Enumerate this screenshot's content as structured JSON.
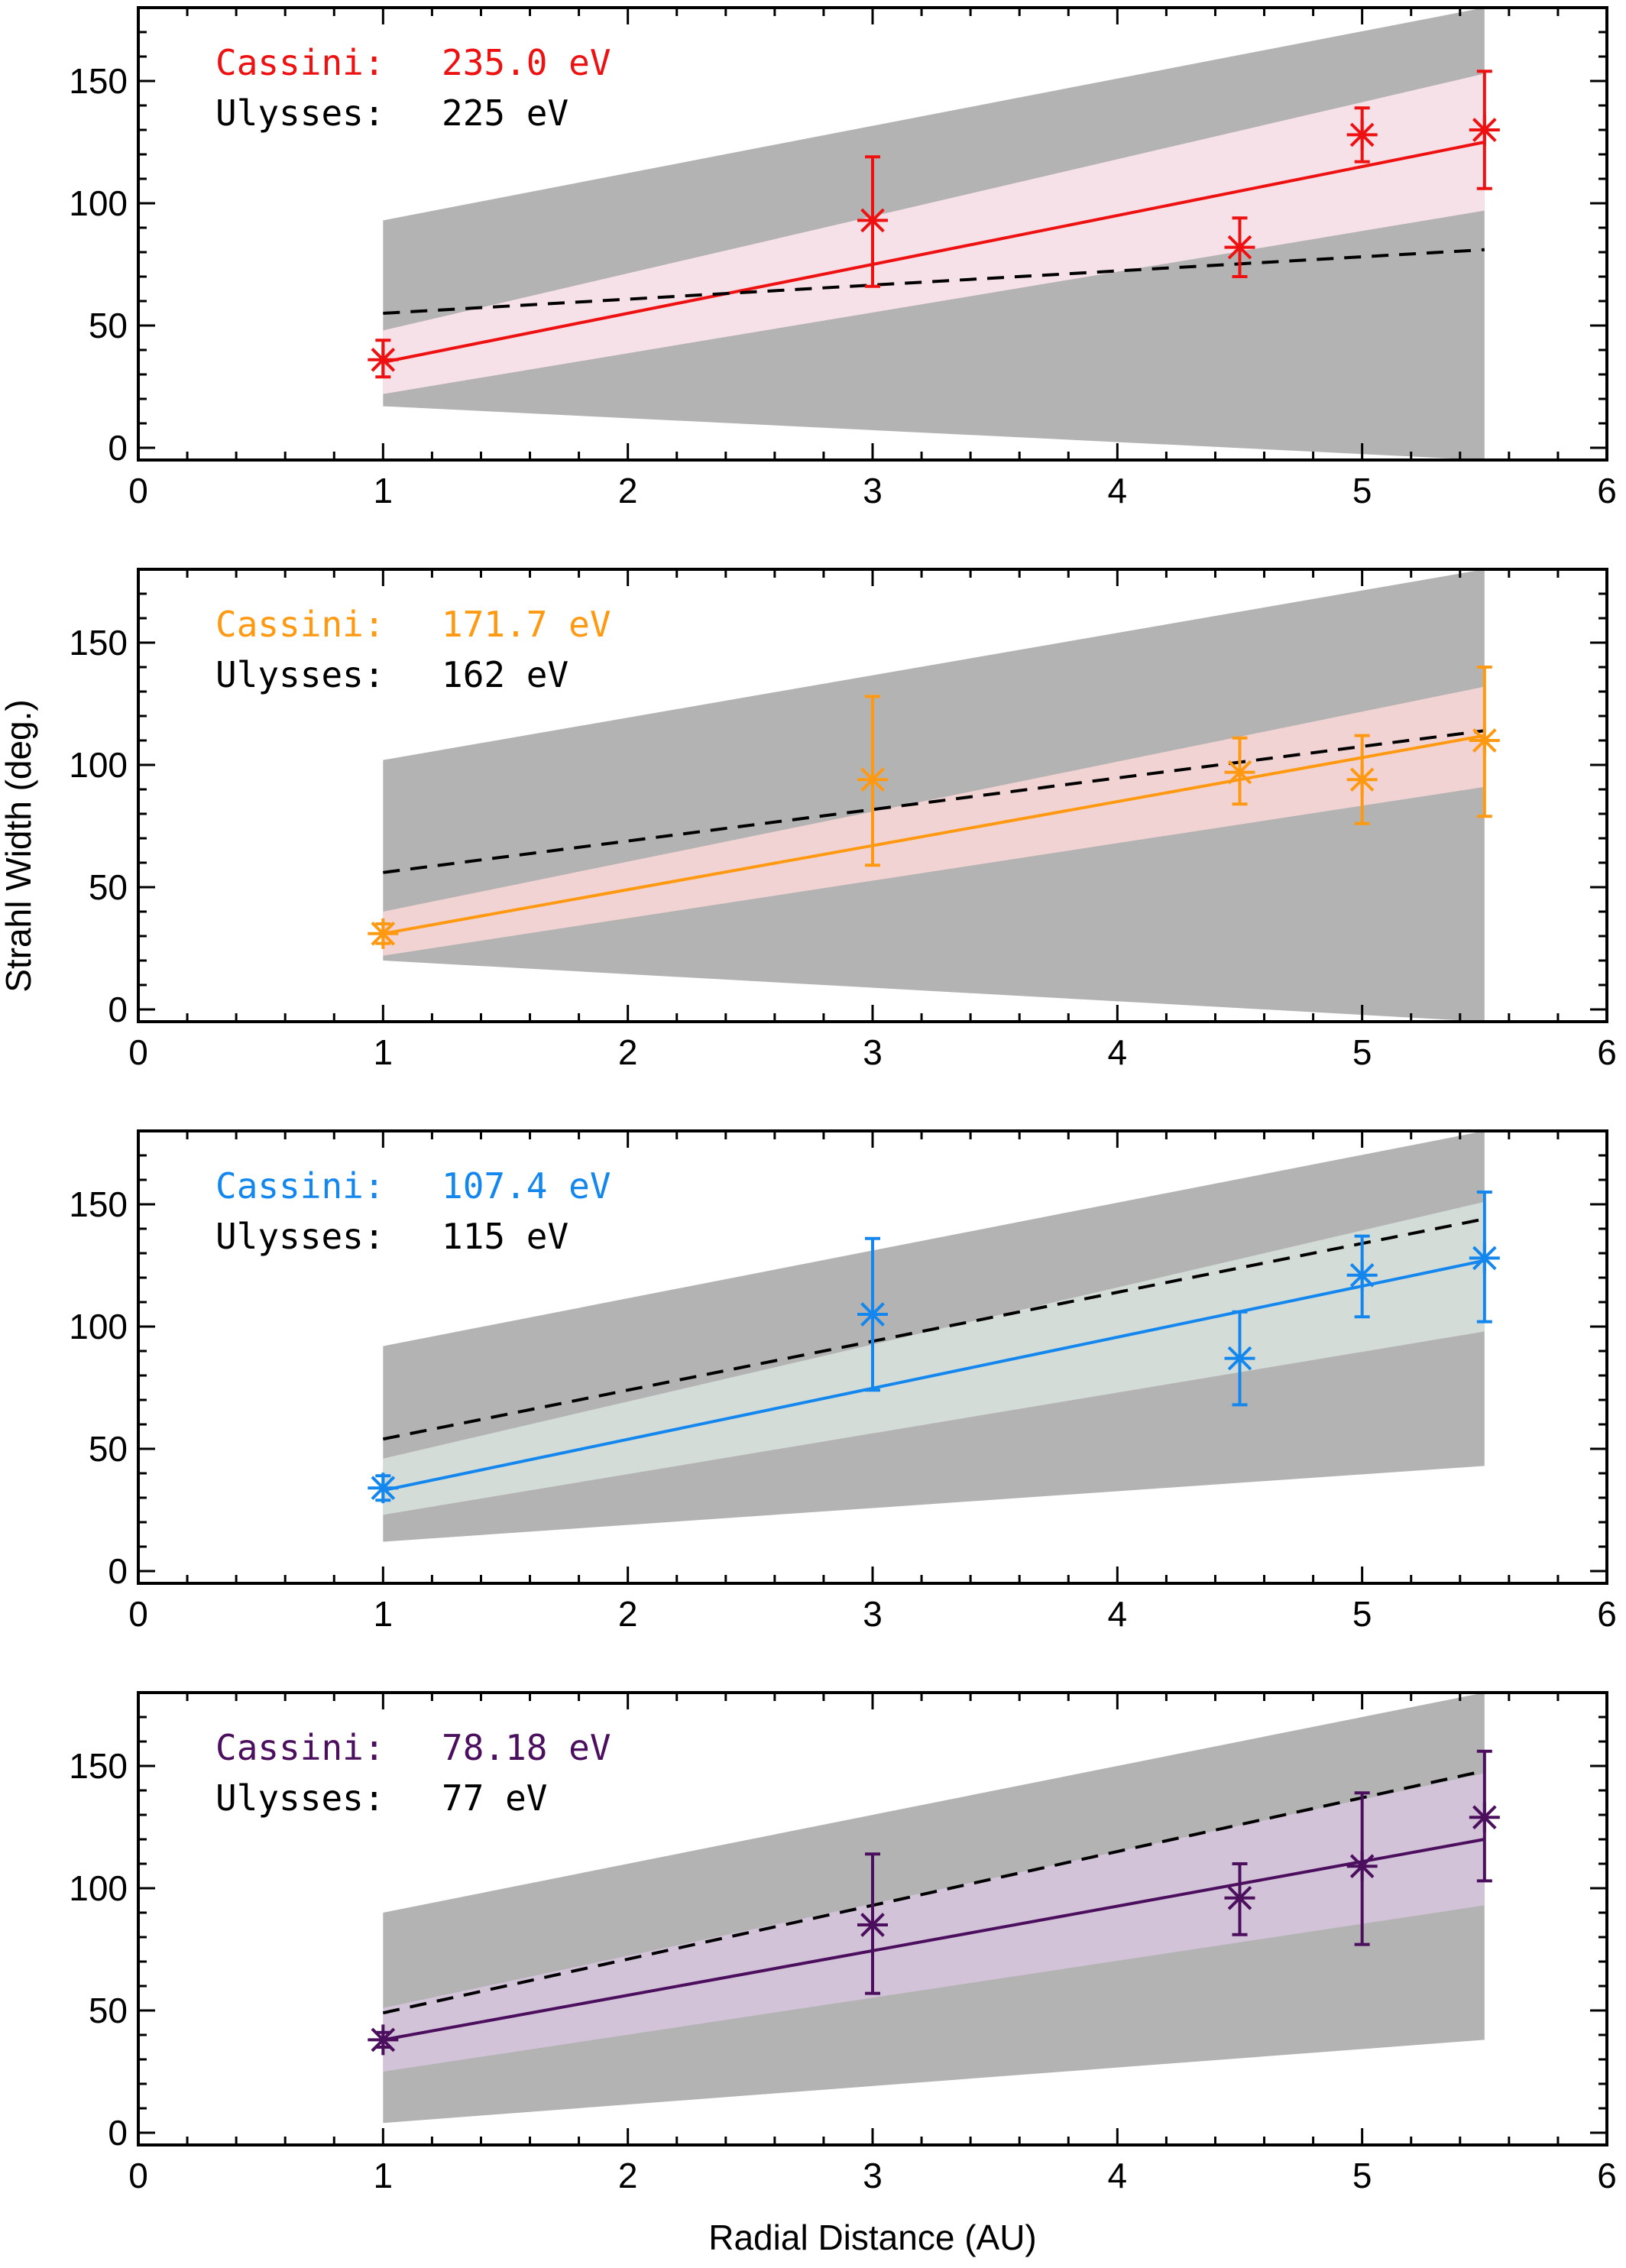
{
  "figure": {
    "ylabel": "Strahl Width (deg.)",
    "xlabel": "Radial Distance (AU)"
  },
  "colors": {
    "band": "#b3b3b3",
    "ulysses_line": "#000000"
  },
  "chart_data": [
    {
      "type": "line",
      "color": "#ee1111",
      "band_color": "#f7e1e8",
      "legend": [
        {
          "label": "Cassini:",
          "value": "235.0 eV",
          "color": "#ee1111"
        },
        {
          "label": "Ulysses:",
          "value": "225 eV",
          "color": "#000000"
        }
      ],
      "xlim": [
        0,
        6
      ],
      "ylim": [
        -5,
        180
      ],
      "xticks": [
        0,
        1,
        2,
        3,
        4,
        5,
        6
      ],
      "yticks": [
        0,
        50,
        100,
        150
      ],
      "x_tick_labels": [
        "0",
        "1",
        "2",
        "3",
        "4",
        "5",
        "6"
      ],
      "y_tick_labels": [
        "0",
        "50",
        "100",
        "150"
      ],
      "points": [
        {
          "x": 1,
          "y": 36,
          "err_low": 29,
          "err_high": 44
        },
        {
          "x": 3,
          "y": 93,
          "err_low": 66,
          "err_high": 119
        },
        {
          "x": 4.5,
          "y": 82,
          "err_low": 70,
          "err_high": 94
        },
        {
          "x": 5,
          "y": 128,
          "err_low": 117,
          "err_high": 139
        },
        {
          "x": 5.5,
          "y": 130,
          "err_low": 106,
          "err_high": 154
        }
      ],
      "fit": {
        "x": [
          1,
          5.5
        ],
        "y": [
          35,
          125
        ]
      },
      "fit_band": {
        "x": [
          1,
          5.5
        ],
        "lower": [
          22,
          97
        ],
        "upper": [
          48,
          153
        ]
      },
      "ulysses": {
        "x": [
          1,
          5.5
        ],
        "y": [
          55,
          81
        ]
      },
      "gray_band": {
        "x": [
          1,
          5.5
        ],
        "lower": [
          17,
          -5
        ],
        "upper": [
          93,
          180
        ]
      }
    },
    {
      "type": "line",
      "color": "#ff9912",
      "band_color": "#f2d3d3",
      "legend": [
        {
          "label": "Cassini:",
          "value": "171.7 eV",
          "color": "#ff9912"
        },
        {
          "label": "Ulysses:",
          "value": "162 eV",
          "color": "#000000"
        }
      ],
      "xlim": [
        0,
        6
      ],
      "ylim": [
        -5,
        180
      ],
      "xticks": [
        0,
        1,
        2,
        3,
        4,
        5,
        6
      ],
      "yticks": [
        0,
        50,
        100,
        150
      ],
      "x_tick_labels": [
        "0",
        "1",
        "2",
        "3",
        "4",
        "5",
        "6"
      ],
      "y_tick_labels": [
        "0",
        "50",
        "100",
        "150"
      ],
      "points": [
        {
          "x": 1,
          "y": 31,
          "err_low": 27,
          "err_high": 35
        },
        {
          "x": 3,
          "y": 94,
          "err_low": 59,
          "err_high": 128
        },
        {
          "x": 4.5,
          "y": 97,
          "err_low": 84,
          "err_high": 111
        },
        {
          "x": 5,
          "y": 94,
          "err_low": 76,
          "err_high": 112
        },
        {
          "x": 5.5,
          "y": 110,
          "err_low": 79,
          "err_high": 140
        }
      ],
      "fit": {
        "x": [
          1,
          5.5
        ],
        "y": [
          31,
          112
        ]
      },
      "fit_band": {
        "x": [
          1,
          5.5
        ],
        "lower": [
          22,
          91
        ],
        "upper": [
          40,
          132
        ]
      },
      "ulysses": {
        "x": [
          1,
          5.5
        ],
        "y": [
          56,
          114
        ]
      },
      "gray_band": {
        "x": [
          1,
          5.5
        ],
        "lower": [
          20,
          -5
        ],
        "upper": [
          102,
          180
        ]
      }
    },
    {
      "type": "line",
      "color": "#1487ee",
      "band_color": "#d4dcd8",
      "legend": [
        {
          "label": "Cassini:",
          "value": "107.4 eV",
          "color": "#1487ee"
        },
        {
          "label": "Ulysses:",
          "value": "115 eV",
          "color": "#000000"
        }
      ],
      "xlim": [
        0,
        6
      ],
      "ylim": [
        -5,
        180
      ],
      "xticks": [
        0,
        1,
        2,
        3,
        4,
        5,
        6
      ],
      "yticks": [
        0,
        50,
        100,
        150
      ],
      "x_tick_labels": [
        "0",
        "1",
        "2",
        "3",
        "4",
        "5",
        "6"
      ],
      "y_tick_labels": [
        "0",
        "50",
        "100",
        "150"
      ],
      "points": [
        {
          "x": 1,
          "y": 34,
          "err_low": 29,
          "err_high": 39
        },
        {
          "x": 3,
          "y": 105,
          "err_low": 74,
          "err_high": 136
        },
        {
          "x": 4.5,
          "y": 87,
          "err_low": 68,
          "err_high": 106
        },
        {
          "x": 5,
          "y": 121,
          "err_low": 104,
          "err_high": 137
        },
        {
          "x": 5.5,
          "y": 128,
          "err_low": 102,
          "err_high": 155
        }
      ],
      "fit": {
        "x": [
          1,
          5.5
        ],
        "y": [
          33,
          127
        ]
      },
      "fit_band": {
        "x": [
          1,
          5.5
        ],
        "lower": [
          23,
          98
        ],
        "upper": [
          46,
          151
        ]
      },
      "ulysses": {
        "x": [
          1,
          5.5
        ],
        "y": [
          54,
          144
        ]
      },
      "gray_band": {
        "x": [
          1,
          5.5
        ],
        "lower": [
          12,
          43
        ],
        "upper": [
          92,
          180
        ]
      }
    },
    {
      "type": "line",
      "color": "#4b0f5e",
      "band_color": "#d3c3d9",
      "legend": [
        {
          "label": "Cassini:",
          "value": "78.18 eV",
          "color": "#4b0f5e"
        },
        {
          "label": "Ulysses:",
          "value": "77 eV",
          "color": "#000000"
        }
      ],
      "xlim": [
        0,
        6
      ],
      "ylim": [
        -5,
        180
      ],
      "xticks": [
        0,
        1,
        2,
        3,
        4,
        5,
        6
      ],
      "yticks": [
        0,
        50,
        100,
        150
      ],
      "x_tick_labels": [
        "0",
        "1",
        "2",
        "3",
        "4",
        "5",
        "6"
      ],
      "y_tick_labels": [
        "0",
        "50",
        "100",
        "150"
      ],
      "points": [
        {
          "x": 1,
          "y": 38,
          "err_low": 35,
          "err_high": 41
        },
        {
          "x": 3,
          "y": 85,
          "err_low": 57,
          "err_high": 114
        },
        {
          "x": 4.5,
          "y": 96,
          "err_low": 81,
          "err_high": 110
        },
        {
          "x": 5,
          "y": 109,
          "err_low": 77,
          "err_high": 139
        },
        {
          "x": 5.5,
          "y": 129,
          "err_low": 103,
          "err_high": 156
        }
      ],
      "fit": {
        "x": [
          1,
          5.5
        ],
        "y": [
          38,
          120
        ]
      },
      "fit_band": {
        "x": [
          1,
          5.5
        ],
        "lower": [
          25,
          93
        ],
        "upper": [
          51,
          147
        ]
      },
      "ulysses": {
        "x": [
          1,
          5.5
        ],
        "y": [
          49,
          148
        ]
      },
      "gray_band": {
        "x": [
          1,
          5.5
        ],
        "lower": [
          4,
          38
        ],
        "upper": [
          90,
          180
        ]
      }
    }
  ]
}
